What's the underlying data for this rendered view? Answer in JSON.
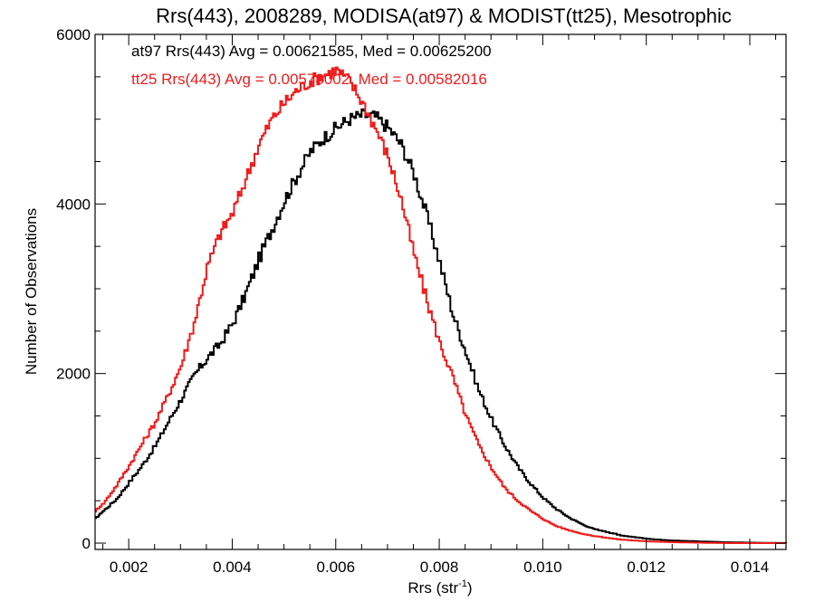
{
  "chart_data": {
    "type": "histogram",
    "title": "Rrs(443), 2008289, MODISA(at97) & MODIST(tt25), Mesotrophic",
    "xlabel_main": "Rrs (str",
    "xlabel_sup": "-1",
    "xlabel_close": ")",
    "ylabel": "Number of Observations",
    "xlim": [
      0.00135,
      0.0147
    ],
    "ylim": [
      0,
      6000
    ],
    "x_ticks": [
      "0.002",
      "0.004",
      "0.006",
      "0.008",
      "0.010",
      "0.012",
      "0.014"
    ],
    "x_tick_values": [
      0.002,
      0.004,
      0.006,
      0.008,
      0.01,
      0.012,
      0.014
    ],
    "y_ticks": [
      "0",
      "2000",
      "4000",
      "6000"
    ],
    "y_tick_values": [
      0,
      2000,
      4000,
      6000
    ],
    "grid": false,
    "legend_placement": "top-left",
    "annotations": [
      {
        "text": "at97 Rrs(443) Avg = 0.00621585, Med = 0.00625200",
        "color": "#000000"
      },
      {
        "text": "tt25 Rrs(443) Avg = 0.00578002, Med = 0.00582016",
        "color": "#ee1c1c"
      }
    ],
    "series": [
      {
        "color": "#000000",
        "x": [
          0.00135,
          0.0015,
          0.00175,
          0.002,
          0.00225,
          0.0025,
          0.00275,
          0.003,
          0.00325,
          0.0035,
          0.00375,
          0.004,
          0.00425,
          0.0045,
          0.00475,
          0.005,
          0.00525,
          0.0055,
          0.00575,
          0.006,
          0.00625,
          0.0065,
          0.00675,
          0.007,
          0.00725,
          0.0075,
          0.00775,
          0.008,
          0.00825,
          0.0085,
          0.00875,
          0.009,
          0.00925,
          0.0095,
          0.00975,
          0.01,
          0.01025,
          0.0105,
          0.01075,
          0.011,
          0.0115,
          0.012,
          0.0125,
          0.013,
          0.0135,
          0.014,
          0.0147
        ],
        "values": [
          290,
          380,
          520,
          720,
          920,
          1150,
          1430,
          1700,
          1980,
          2180,
          2350,
          2600,
          2950,
          3350,
          3700,
          4050,
          4350,
          4620,
          4780,
          4900,
          5000,
          5050,
          5030,
          4900,
          4700,
          4350,
          3850,
          3300,
          2700,
          2250,
          1800,
          1450,
          1150,
          900,
          700,
          530,
          400,
          300,
          220,
          160,
          90,
          50,
          30,
          20,
          10,
          5,
          0
        ]
      },
      {
        "color": "#ee1c1c",
        "x": [
          0.00135,
          0.0015,
          0.00175,
          0.002,
          0.00225,
          0.0025,
          0.00275,
          0.003,
          0.00325,
          0.0035,
          0.00375,
          0.004,
          0.00425,
          0.0045,
          0.00475,
          0.005,
          0.00525,
          0.0055,
          0.00575,
          0.006,
          0.00625,
          0.0065,
          0.00675,
          0.007,
          0.00725,
          0.0075,
          0.00775,
          0.008,
          0.00825,
          0.0085,
          0.00875,
          0.009,
          0.00925,
          0.0095,
          0.00975,
          0.01,
          0.01025,
          0.0105,
          0.01075,
          0.011,
          0.0115,
          0.012,
          0.0125,
          0.013,
          0.0135,
          0.014,
          0.0147
        ],
        "values": [
          380,
          470,
          680,
          920,
          1180,
          1430,
          1750,
          2100,
          2600,
          3250,
          3650,
          3900,
          4300,
          4700,
          5000,
          5200,
          5350,
          5450,
          5520,
          5580,
          5450,
          5200,
          4900,
          4550,
          4050,
          3400,
          2850,
          2350,
          1950,
          1500,
          1150,
          880,
          650,
          500,
          380,
          280,
          200,
          150,
          110,
          80,
          40,
          20,
          10,
          5,
          0,
          0,
          0
        ]
      }
    ]
  }
}
